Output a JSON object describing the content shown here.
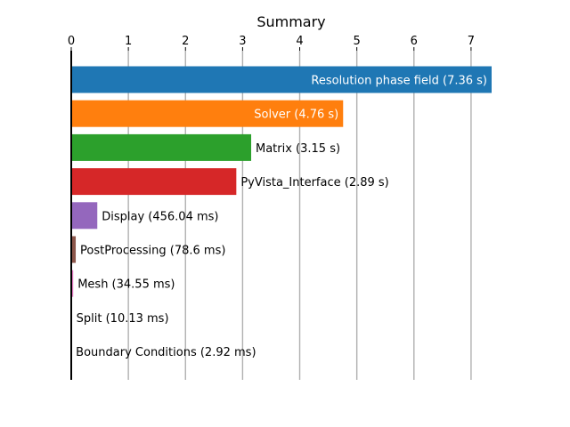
{
  "chart_data": {
    "type": "bar",
    "orientation": "horizontal",
    "title": "Summary",
    "xlabel": "",
    "ylabel": "",
    "xlim": [
      0,
      7.36
    ],
    "x_ticks": [
      0,
      1,
      2,
      3,
      4,
      5,
      6,
      7
    ],
    "x_axis_position": "top",
    "grid": "vertical",
    "grid_color": "#b0b0b0",
    "categories": [
      "Resolution phase field",
      "Solver",
      "Matrix",
      "PyVista_Interface",
      "Display",
      "PostProcessing",
      "Mesh",
      "Split",
      "Boundary Conditions"
    ],
    "values": [
      7.36,
      4.76,
      3.15,
      2.89,
      0.45604,
      0.0786,
      0.03455,
      0.01013,
      0.00292
    ],
    "labels": [
      "Resolution phase field (7.36 s)",
      "Solver (4.76 s)",
      "Matrix (3.15 s)",
      "PyVista_Interface (2.89 s)",
      "Display (456.04 ms)",
      "PostProcessing (78.6 ms)",
      "Mesh (34.55 ms)",
      "Split (10.13 ms)",
      "Boundary Conditions (2.92 ms)"
    ],
    "colors": [
      "#1f77b4",
      "#ff7f0e",
      "#2ca02c",
      "#d62728",
      "#9467bd",
      "#8c564b",
      "#e377c2",
      "#7f7f7f",
      "#bcbd22"
    ],
    "label_inside": [
      true,
      true,
      false,
      false,
      false,
      false,
      false,
      false,
      false
    ],
    "inside_label_color": "#ffffff",
    "outside_label_color": "#000000"
  }
}
